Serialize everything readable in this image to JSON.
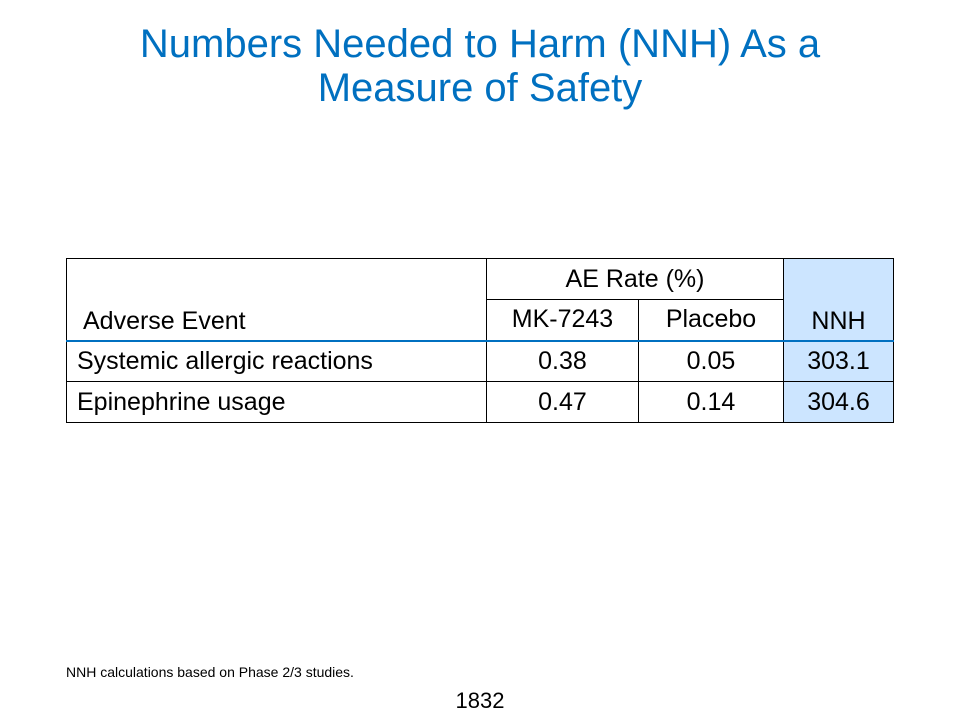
{
  "slide": {
    "title_line1": "Numbers Needed to Harm (NNH) As a",
    "title_line2": "Measure of Safety",
    "footnote": "NNH calculations based on Phase 2/3 studies.",
    "page_number": "1832",
    "accent_color": "#0070c0",
    "highlight_color": "#cce5ff"
  },
  "table": {
    "event_header": "Adverse Event",
    "group_header": "AE Rate (%)",
    "mk_header": "MK-7243",
    "placebo_header": "Placebo",
    "nnh_header": "NNH",
    "rows": [
      {
        "event": "Systemic allergic reactions",
        "mk": "0.38",
        "placebo": "0.05",
        "nnh": "303.1"
      },
      {
        "event": "Epinephrine usage",
        "mk": "0.47",
        "placebo": "0.14",
        "nnh": "304.6"
      }
    ]
  }
}
